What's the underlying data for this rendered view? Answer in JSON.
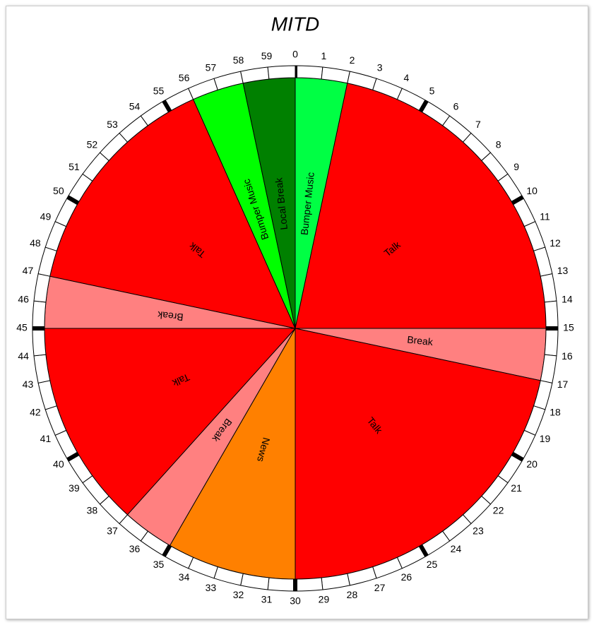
{
  "chart_data": {
    "type": "clock",
    "title": "MITD",
    "categories": [
      "Bumper Music",
      "Talk",
      "Break",
      "Talk",
      "News",
      "Break",
      "Talk",
      "Break",
      "Talk",
      "Bumper Music",
      "Local Break"
    ],
    "values": [
      2,
      13,
      2,
      13,
      5,
      2,
      8,
      2,
      9,
      2,
      2
    ],
    "colors": [
      "#00ff44",
      "#ff0000",
      "#ff8080",
      "#ff0000",
      "#ff8000",
      "#ff8080",
      "#ff0000",
      "#ff8080",
      "#ff0000",
      "#00ff00",
      "#008000"
    ],
    "lim": [
      0,
      60
    ],
    "ticks": [
      0,
      1,
      2,
      3,
      4,
      5,
      6,
      7,
      8,
      9,
      10,
      11,
      12,
      13,
      14,
      15,
      16,
      17,
      18,
      19,
      20,
      21,
      22,
      23,
      24,
      25,
      26,
      27,
      28,
      29,
      30,
      31,
      32,
      33,
      34,
      35,
      36,
      37,
      38,
      39,
      40,
      41,
      42,
      43,
      44,
      45,
      46,
      47,
      48,
      49,
      50,
      51,
      52,
      53,
      54,
      55,
      56,
      57,
      58,
      59
    ],
    "major_tick_every": 5
  }
}
